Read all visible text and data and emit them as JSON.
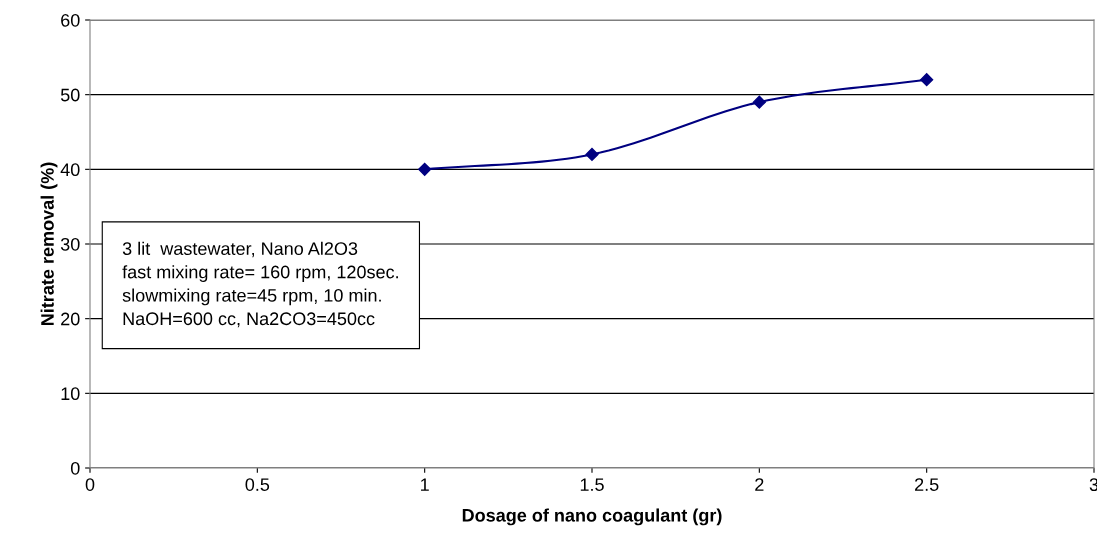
{
  "chart_data": {
    "type": "line",
    "xlabel": "Dosage of nano coagulant (gr)",
    "ylabel": "Nitrate removal (%)",
    "x": [
      1,
      1.5,
      2,
      2.5
    ],
    "series": [
      {
        "color": "#000080",
        "values": [
          40,
          42,
          49,
          52
        ]
      }
    ],
    "xlim": [
      0,
      3
    ],
    "xticks": [
      0,
      0.5,
      1,
      1.5,
      2,
      2.5,
      3
    ],
    "ylim": [
      0,
      60
    ],
    "yticks": [
      0,
      10,
      20,
      30,
      40,
      50,
      60
    ],
    "grid": "y",
    "marker": "diamond",
    "line_style": "solid",
    "annotations": [
      "3 lit  wastewater, Nano Al2O3\nfast mixing rate= 160 rpm, 120sec.\nslowmixing rate=45 rpm, 10 min.\nNaOH=600 cc, Na2CO3=450cc"
    ]
  }
}
